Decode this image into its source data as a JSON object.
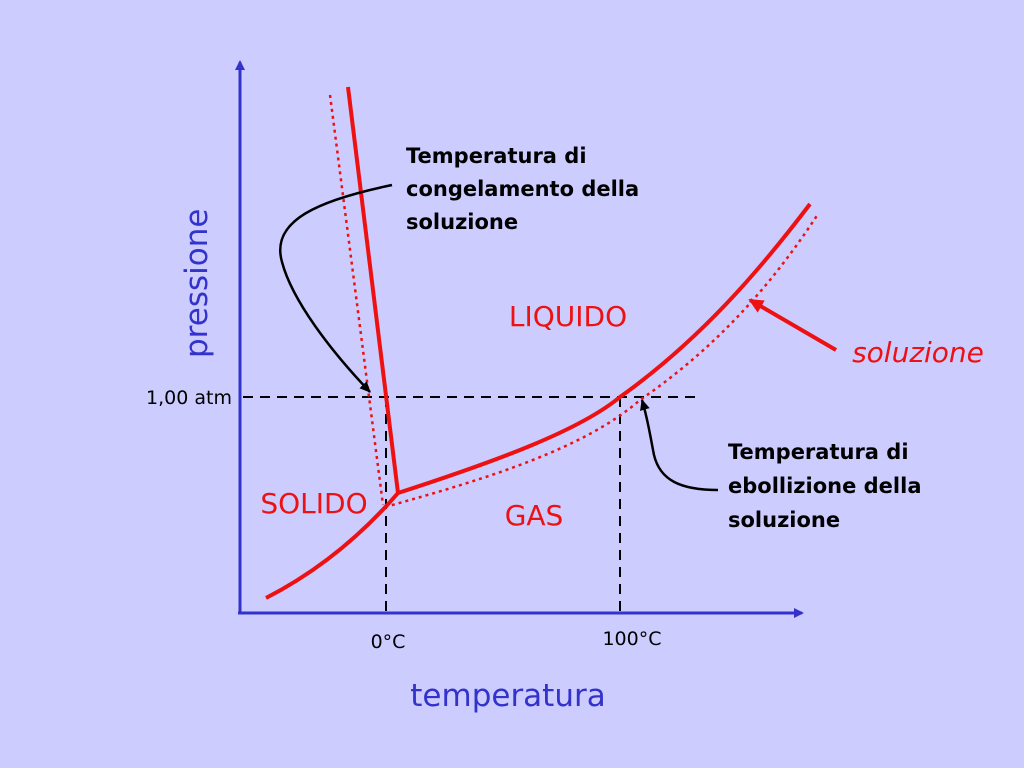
{
  "axes": {
    "y_label": "pressione",
    "x_label": "temperatura",
    "pressure_tick": "1,00 atm",
    "temp_ticks": [
      "0°C",
      "100°C"
    ]
  },
  "regions": {
    "liquid": "LIQUIDO",
    "solid": "SOLIDO",
    "gas": "GAS"
  },
  "legend": {
    "solution": "soluzione"
  },
  "annotations": {
    "freezing": [
      "Temperatura di",
      "congelamento della",
      "soluzione"
    ],
    "boiling": [
      "Temperatura di",
      "ebollizione della",
      "soluzione"
    ]
  },
  "colors": {
    "background": "#ccccff",
    "axis": "#3333cc",
    "curve": "#ee1111",
    "axis_text": "#3333cc",
    "region_text": "#ee1111"
  }
}
